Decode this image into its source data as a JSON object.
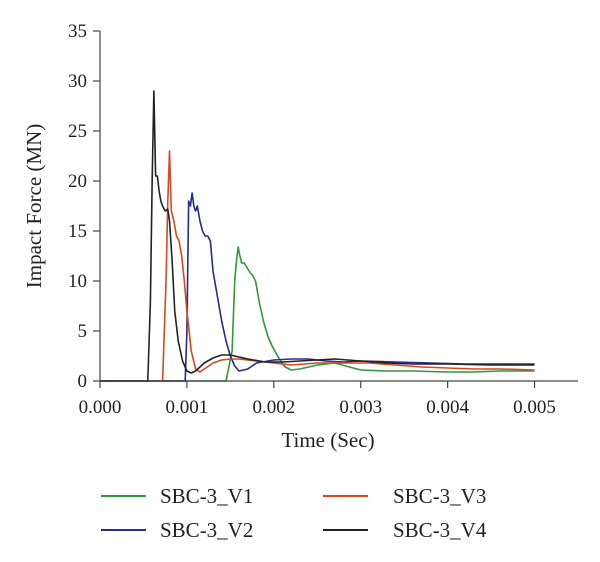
{
  "chart_data": {
    "type": "line",
    "xlabel": "Time (Sec)",
    "ylabel": "Impact Force (MN)",
    "xlim": [
      0.0,
      0.0055
    ],
    "ylim": [
      0,
      35
    ],
    "xticks": [
      0.0,
      0.001,
      0.002,
      0.003,
      0.004,
      0.005
    ],
    "xtick_labels": [
      "0.000",
      "0.001",
      "0.002",
      "0.003",
      "0.004",
      "0.005"
    ],
    "yticks": [
      0,
      5,
      10,
      15,
      20,
      25,
      30,
      35
    ],
    "ytick_labels": [
      "0",
      "5",
      "10",
      "15",
      "20",
      "25",
      "30",
      "35"
    ],
    "grid": false,
    "legend_position": "bottom",
    "series": [
      {
        "name": "SBC-3_V1",
        "color": "#2e9a3a",
        "x": [
          0.0,
          0.00145,
          0.00152,
          0.00155,
          0.00157,
          0.00159,
          0.00161,
          0.00163,
          0.00166,
          0.0017,
          0.00173,
          0.00176,
          0.00179,
          0.00183,
          0.00188,
          0.00193,
          0.00198,
          0.00203,
          0.00208,
          0.00213,
          0.0022,
          0.0023,
          0.0025,
          0.0027,
          0.003,
          0.0033,
          0.0036,
          0.004,
          0.0043,
          0.0046,
          0.005
        ],
        "y": [
          0,
          0,
          3.0,
          10.0,
          12.0,
          13.4,
          12.5,
          11.8,
          11.8,
          11.2,
          10.8,
          10.5,
          10.0,
          8.0,
          6.0,
          4.5,
          3.5,
          2.7,
          2.0,
          1.4,
          1.1,
          1.2,
          1.6,
          1.8,
          1.1,
          1.0,
          1.0,
          0.9,
          0.9,
          1.0,
          1.0
        ]
      },
      {
        "name": "SBC-3_V2",
        "color": "#262b8f",
        "x": [
          0.0,
          0.00098,
          0.001,
          0.00102,
          0.00104,
          0.00106,
          0.00108,
          0.0011,
          0.00112,
          0.00115,
          0.00118,
          0.00121,
          0.00124,
          0.00127,
          0.0013,
          0.00133,
          0.00136,
          0.0014,
          0.00145,
          0.0015,
          0.00155,
          0.0016,
          0.0017,
          0.0018,
          0.002,
          0.0022,
          0.0024,
          0.0026,
          0.0028,
          0.003,
          0.0034,
          0.0038,
          0.0042,
          0.0046,
          0.005
        ],
        "y": [
          0,
          0,
          5.0,
          18.0,
          17.5,
          18.8,
          17.5,
          17.0,
          17.5,
          16.0,
          15.0,
          14.5,
          14.5,
          14.0,
          11.0,
          9.5,
          8.0,
          6.0,
          4.0,
          2.5,
          1.5,
          1.0,
          1.2,
          1.8,
          2.1,
          2.2,
          2.2,
          2.0,
          1.9,
          2.0,
          1.9,
          1.8,
          1.7,
          1.7,
          1.7
        ]
      },
      {
        "name": "SBC-3_V3",
        "color": "#d9481a",
        "x": [
          0.0,
          0.00072,
          0.00076,
          0.00078,
          0.0008,
          0.00082,
          0.00085,
          0.00088,
          0.00091,
          0.00094,
          0.00097,
          0.001,
          0.00105,
          0.0011,
          0.00115,
          0.0012,
          0.0013,
          0.0014,
          0.0015,
          0.0016,
          0.0018,
          0.002,
          0.0022,
          0.0025,
          0.0028,
          0.0031,
          0.0034,
          0.0037,
          0.004,
          0.0043,
          0.0046,
          0.005
        ],
        "y": [
          0,
          0,
          10.0,
          18.0,
          23.0,
          17.0,
          16.0,
          14.5,
          14.0,
          12.5,
          10.0,
          7.0,
          3.0,
          1.2,
          0.9,
          1.2,
          1.8,
          2.1,
          2.2,
          2.2,
          2.0,
          1.8,
          1.6,
          1.8,
          1.8,
          1.8,
          1.6,
          1.4,
          1.3,
          1.2,
          1.2,
          1.1
        ]
      },
      {
        "name": "SBC-3_V4",
        "color": "#222222",
        "x": [
          0.0,
          0.00055,
          0.00058,
          0.0006,
          0.00062,
          0.00064,
          0.00066,
          0.00068,
          0.0007,
          0.00072,
          0.00075,
          0.00078,
          0.0008,
          0.00083,
          0.00086,
          0.0009,
          0.00095,
          0.001,
          0.00105,
          0.0011,
          0.0012,
          0.0013,
          0.0014,
          0.0015,
          0.0016,
          0.0017,
          0.0019,
          0.0021,
          0.0023,
          0.0025,
          0.0027,
          0.003,
          0.0033,
          0.0036,
          0.004,
          0.0045,
          0.005
        ],
        "y": [
          0,
          0,
          8.0,
          20.0,
          29.0,
          20.5,
          20.5,
          19.0,
          18.0,
          17.5,
          17.0,
          17.2,
          16.0,
          12.0,
          7.0,
          4.0,
          2.0,
          1.0,
          0.8,
          1.0,
          1.8,
          2.3,
          2.6,
          2.6,
          2.4,
          2.2,
          1.9,
          1.9,
          2.0,
          2.1,
          2.2,
          2.0,
          1.8,
          1.7,
          1.7,
          1.6,
          1.6
        ]
      }
    ]
  }
}
